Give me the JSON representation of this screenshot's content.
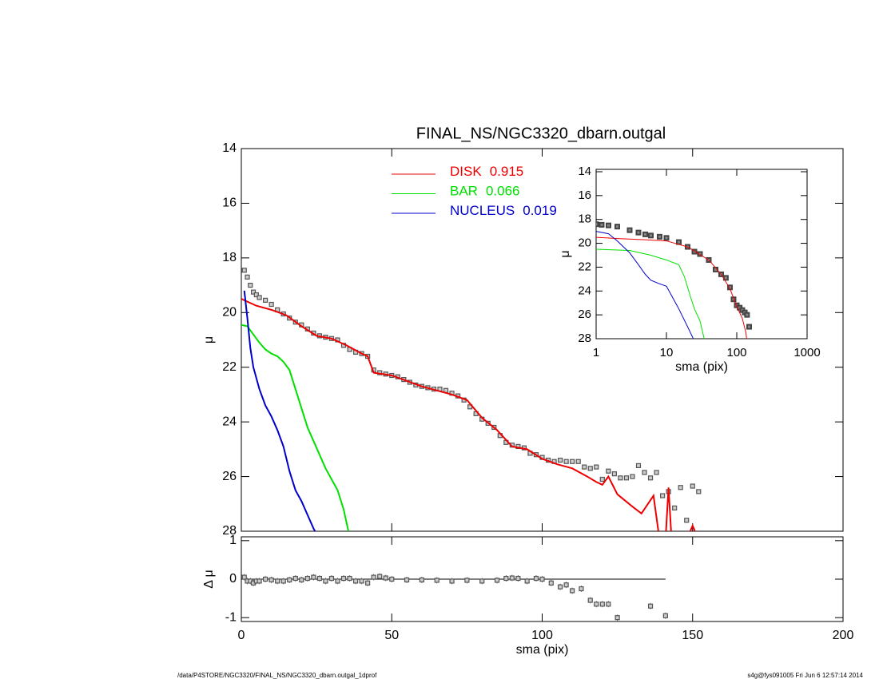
{
  "chart_data": [
    {
      "type": "line",
      "title": "FINAL_NS/NGC3320_dbarn.outgal",
      "ylabel": "μ",
      "xlim": [
        0,
        200
      ],
      "xticks": [
        0,
        50,
        100,
        150,
        200
      ],
      "show_xtick_labels": false,
      "ylim": [
        28,
        14
      ],
      "yticks": [
        14,
        16,
        18,
        20,
        22,
        24,
        26,
        28
      ],
      "series": [
        {
          "mode": "markers",
          "color": "#555555",
          "x": [
            1,
            2,
            3,
            4,
            5,
            6,
            8,
            10,
            12,
            14,
            16,
            18,
            20,
            22,
            24,
            26,
            28,
            30,
            32,
            34,
            36,
            38,
            40,
            42,
            44,
            46,
            48,
            50,
            52,
            54,
            56,
            58,
            60,
            62,
            64,
            66,
            68,
            70,
            72,
            74,
            76,
            78,
            80,
            82,
            84,
            86,
            88,
            90,
            92,
            94,
            96,
            98,
            100,
            102,
            104,
            106,
            108,
            110,
            112,
            114,
            116,
            118,
            120,
            122,
            124,
            126,
            128,
            130,
            132,
            134,
            136,
            138,
            140,
            142,
            144,
            146,
            148,
            150,
            152
          ],
          "values": [
            18.45,
            18.7,
            19.0,
            19.25,
            19.35,
            19.45,
            19.55,
            19.7,
            19.9,
            20.05,
            20.2,
            20.35,
            20.45,
            20.6,
            20.75,
            20.85,
            20.9,
            20.95,
            21.0,
            21.2,
            21.35,
            21.45,
            21.5,
            21.6,
            22.1,
            22.2,
            22.25,
            22.3,
            22.35,
            22.45,
            22.55,
            22.65,
            22.7,
            22.75,
            22.8,
            22.8,
            22.85,
            22.95,
            23.05,
            23.2,
            23.45,
            23.7,
            23.9,
            24.05,
            24.2,
            24.5,
            24.75,
            24.85,
            24.9,
            24.95,
            25.15,
            25.2,
            25.3,
            25.4,
            25.45,
            25.4,
            25.45,
            25.45,
            25.45,
            25.65,
            25.7,
            25.65,
            26.1,
            25.8,
            25.9,
            26.05,
            26.05,
            26.0,
            25.6,
            25.85,
            26.05,
            25.85,
            26.7,
            26.55,
            27.15,
            26.4,
            27.6,
            26.35,
            26.55
          ]
        },
        {
          "mode": "line",
          "name": "DISK",
          "fraction": 0.915,
          "color": "#ee0000",
          "x": [
            0,
            5,
            10,
            15,
            20,
            25,
            30,
            35,
            40,
            42,
            44,
            50,
            60,
            70,
            75,
            80,
            85,
            90,
            95,
            100,
            105,
            110,
            115,
            118,
            120,
            122,
            125,
            130,
            133,
            137,
            139,
            141,
            142,
            143,
            148,
            150,
            152
          ],
          "values": [
            19.5,
            19.75,
            19.9,
            20.1,
            20.5,
            20.85,
            20.95,
            21.2,
            21.5,
            21.6,
            22.2,
            22.3,
            22.7,
            23.0,
            23.2,
            23.85,
            24.3,
            24.9,
            25.0,
            25.35,
            25.55,
            25.7,
            26.0,
            26.2,
            26.3,
            26.0,
            26.65,
            27.1,
            27.35,
            26.7,
            28.3,
            28.3,
            26.4,
            28.3,
            28.3,
            27.8,
            28.3
          ]
        },
        {
          "mode": "line",
          "name": "BAR",
          "fraction": 0.066,
          "color": "#00e000",
          "x": [
            0,
            2,
            4,
            6,
            8,
            10,
            12,
            14,
            16,
            18,
            20,
            22,
            24,
            26,
            28,
            30,
            32,
            34,
            36
          ],
          "values": [
            20.45,
            20.5,
            20.8,
            21.1,
            21.35,
            21.5,
            21.6,
            21.8,
            22.1,
            22.8,
            23.5,
            24.2,
            24.7,
            25.2,
            25.7,
            26.1,
            26.5,
            27.2,
            28.2
          ]
        },
        {
          "mode": "line",
          "name": "NUCLEUS",
          "fraction": 0.019,
          "color": "#0000cc",
          "x": [
            1,
            2,
            3,
            4,
            5,
            6,
            8,
            10,
            12,
            14,
            16,
            18,
            20,
            22,
            24,
            25
          ],
          "values": [
            19.2,
            20.2,
            21.3,
            22.0,
            22.4,
            22.8,
            23.4,
            23.8,
            24.3,
            24.9,
            25.8,
            26.5,
            26.9,
            27.4,
            27.9,
            28.1
          ]
        }
      ]
    },
    {
      "type": "scatter",
      "xlabel": "sma (pix)",
      "ylabel": "Δ μ",
      "xlim": [
        0,
        200
      ],
      "xticks": [
        0,
        50,
        100,
        150,
        200
      ],
      "ylim": [
        -1.1,
        1.1
      ],
      "yticks": [
        -1,
        0,
        1
      ],
      "zero_line": true,
      "series": [
        {
          "mode": "markers",
          "color": "#555555",
          "x": [
            1,
            2,
            3,
            4,
            5,
            6,
            8,
            10,
            12,
            14,
            16,
            18,
            20,
            22,
            24,
            26,
            28,
            30,
            32,
            34,
            36,
            38,
            40,
            42,
            44,
            46,
            48,
            50,
            55,
            60,
            65,
            70,
            75,
            80,
            85,
            88,
            90,
            92,
            95,
            98,
            100,
            103,
            106,
            108,
            110,
            113,
            116,
            118,
            120,
            122,
            125,
            136,
            141
          ],
          "values": [
            0.05,
            -0.05,
            -0.05,
            -0.1,
            -0.05,
            -0.05,
            0,
            -0.02,
            -0.05,
            -0.05,
            -0.02,
            0.02,
            -0.02,
            0.02,
            0.05,
            0.02,
            -0.05,
            0.02,
            -0.05,
            0.02,
            0.02,
            -0.05,
            -0.05,
            -0.1,
            0.05,
            0.07,
            0.03,
            0,
            -0.02,
            -0.02,
            -0.03,
            -0.05,
            -0.03,
            -0.05,
            -0.03,
            0.02,
            0.03,
            0.02,
            -0.05,
            0.02,
            0,
            -0.1,
            -0.2,
            -0.15,
            -0.3,
            -0.25,
            -0.55,
            -0.65,
            -0.65,
            -0.65,
            -1.0,
            -0.7,
            -0.95
          ]
        }
      ]
    },
    {
      "type": "line",
      "xlabel": "sma (pix)",
      "ylabel": "μ",
      "xlog": true,
      "xlim": [
        1,
        1000
      ],
      "xticks": [
        1,
        10,
        100,
        1000
      ],
      "ylim": [
        28,
        13.8
      ],
      "yticks": [
        14,
        16,
        18,
        20,
        22,
        24,
        26,
        28
      ],
      "series": [
        {
          "mode": "markers",
          "color": "#444444",
          "x": [
            1,
            1.2,
            1.5,
            2,
            3,
            4,
            5,
            6,
            8,
            10,
            15,
            20,
            25,
            30,
            40,
            50,
            60,
            70,
            80,
            90,
            100,
            110,
            120,
            130,
            140,
            150
          ],
          "values": [
            18.4,
            18.45,
            18.5,
            18.6,
            18.9,
            19.1,
            19.25,
            19.35,
            19.45,
            19.55,
            19.9,
            20.3,
            20.7,
            20.9,
            21.4,
            22.2,
            22.6,
            22.9,
            23.7,
            24.7,
            25.2,
            25.4,
            25.6,
            25.8,
            26.0,
            27.0
          ]
        },
        {
          "mode": "line",
          "color": "#ee0000",
          "x": [
            1,
            2,
            5,
            10,
            20,
            40,
            60,
            80,
            100,
            120,
            135,
            140
          ],
          "values": [
            19.5,
            19.6,
            19.7,
            19.8,
            20.3,
            21.4,
            22.6,
            23.8,
            25.3,
            26.3,
            27.5,
            28.3
          ]
        },
        {
          "mode": "line",
          "color": "#00e000",
          "x": [
            1,
            3,
            6,
            10,
            15,
            18,
            22,
            25,
            30,
            35
          ],
          "values": [
            20.5,
            20.6,
            21.0,
            21.4,
            21.8,
            22.8,
            24.5,
            25.5,
            26.5,
            28.2
          ]
        },
        {
          "mode": "line",
          "color": "#0000cc",
          "x": [
            1,
            1.5,
            2,
            3,
            4,
            5,
            6,
            8,
            10,
            15,
            20,
            25
          ],
          "values": [
            19.0,
            19.2,
            19.8,
            20.8,
            21.8,
            22.6,
            23.1,
            23.4,
            23.6,
            25.5,
            27.0,
            28.2
          ]
        }
      ]
    }
  ],
  "footer": {
    "left": "/data/P4STORE/NGC3320/FINAL_NS/NGC3320_dbarn.outgal_1dprof",
    "right": "s4g@fys091005  Fri Jun  6 12:57:14 2014"
  }
}
